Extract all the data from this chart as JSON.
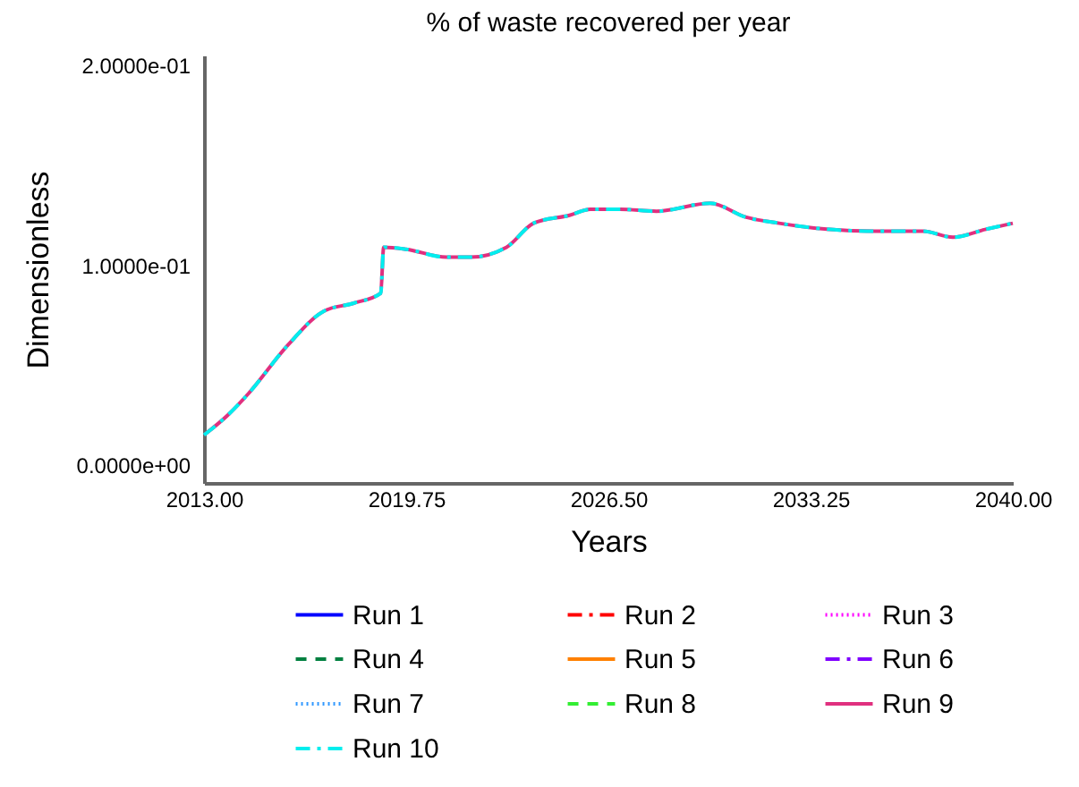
{
  "chart_data": {
    "type": "line",
    "title": "% of waste recovered per year",
    "xlabel": "Years",
    "ylabel": "Dimensionless",
    "x": [
      2013,
      2013.8,
      2014.5,
      2015.8,
      2017.0,
      2018.0,
      2018.9,
      2019.0,
      2019.75,
      2021.1,
      2021.9,
      2023.1,
      2024.0,
      2025.2,
      2025.9,
      2026.9,
      2028.1,
      2029.9,
      2031.1,
      2032.2,
      2033.8,
      2035.4,
      2037.0,
      2038.0,
      2039.1,
      2040
    ],
    "xlim": [
      2013,
      2040
    ],
    "xticks": [
      {
        "value": 2013,
        "label": "2013.00"
      },
      {
        "value": 2019.75,
        "label": "2019.75"
      },
      {
        "value": 2026.5,
        "label": "2026.50"
      },
      {
        "value": 2033.25,
        "label": "2033.25"
      },
      {
        "value": 2040,
        "label": "2040.00"
      }
    ],
    "ylim": [
      -0.009,
      0.205
    ],
    "yticks": [
      {
        "value": 0,
        "label": "0.0000e+00"
      },
      {
        "value": 0.1,
        "label": "1.0000e-01"
      },
      {
        "value": 0.2,
        "label": "2.0000e-01"
      }
    ],
    "grid": false,
    "legend": "bottom",
    "series": [
      {
        "name": "Run 1",
        "color": "#0000ff",
        "line_style": "solid",
        "values": [
          null,
          null,
          null,
          null,
          null,
          null,
          null,
          null,
          null,
          null,
          null,
          null,
          null,
          null,
          null,
          null,
          null,
          null,
          null,
          null,
          null,
          null,
          null,
          null,
          null,
          null
        ]
      },
      {
        "name": "Run 2",
        "color": "#ff0000",
        "line_style": "dashdot",
        "values": [
          null,
          null,
          null,
          null,
          null,
          null,
          null,
          null,
          null,
          null,
          null,
          null,
          null,
          null,
          null,
          null,
          null,
          null,
          null,
          null,
          null,
          null,
          null,
          null,
          null,
          null
        ]
      },
      {
        "name": "Run 3",
        "color": "#ff00ff",
        "line_style": "dotted",
        "values": [
          null,
          null,
          null,
          null,
          null,
          null,
          null,
          null,
          null,
          null,
          null,
          null,
          null,
          null,
          null,
          null,
          null,
          null,
          null,
          null,
          null,
          null,
          null,
          null,
          null,
          null
        ]
      },
      {
        "name": "Run 4",
        "color": "#008040",
        "line_style": "dashed",
        "values": [
          null,
          null,
          null,
          null,
          null,
          null,
          null,
          null,
          null,
          null,
          null,
          null,
          null,
          null,
          null,
          null,
          null,
          null,
          null,
          null,
          null,
          null,
          null,
          null,
          null,
          null
        ]
      },
      {
        "name": "Run 5",
        "color": "#ff8000",
        "line_style": "solid",
        "values": [
          null,
          null,
          null,
          null,
          null,
          null,
          null,
          null,
          null,
          null,
          null,
          null,
          null,
          null,
          null,
          null,
          null,
          null,
          null,
          null,
          null,
          null,
          null,
          null,
          null,
          null
        ]
      },
      {
        "name": "Run 6",
        "color": "#8000ff",
        "line_style": "dashdot",
        "values": [
          null,
          null,
          null,
          null,
          null,
          null,
          null,
          null,
          null,
          null,
          null,
          null,
          null,
          null,
          null,
          null,
          null,
          null,
          null,
          null,
          null,
          null,
          null,
          null,
          null,
          null
        ]
      },
      {
        "name": "Run 7",
        "color": "#3399ff",
        "line_style": "dotted",
        "values": [
          null,
          null,
          null,
          null,
          null,
          null,
          null,
          null,
          null,
          null,
          null,
          null,
          null,
          null,
          null,
          null,
          null,
          null,
          null,
          null,
          null,
          null,
          null,
          null,
          null,
          null
        ]
      },
      {
        "name": "Run 8",
        "color": "#33ee33",
        "line_style": "dashed",
        "values": [
          null,
          null,
          null,
          null,
          null,
          null,
          null,
          null,
          null,
          null,
          null,
          null,
          null,
          null,
          null,
          null,
          null,
          null,
          null,
          null,
          null,
          null,
          null,
          null,
          null,
          null
        ]
      },
      {
        "name": "Run 9",
        "color": "#e0307f",
        "line_style": "solid",
        "values": [
          0.015,
          0.025,
          0.036,
          0.06,
          0.077,
          0.081,
          0.086,
          0.109,
          0.108,
          0.104,
          0.104,
          0.109,
          0.121,
          0.125,
          0.128,
          0.128,
          0.127,
          0.131,
          0.124,
          0.121,
          0.118,
          0.117,
          0.117,
          0.114,
          0.118,
          0.121
        ]
      },
      {
        "name": "Run 10",
        "color": "#00eeee",
        "line_style": "dashdot",
        "values": [
          0.015,
          0.025,
          0.036,
          0.06,
          0.077,
          0.081,
          0.086,
          0.109,
          0.108,
          0.104,
          0.104,
          0.109,
          0.121,
          0.125,
          0.128,
          0.128,
          0.127,
          0.131,
          0.124,
          0.121,
          0.118,
          0.117,
          0.117,
          0.114,
          0.118,
          0.121
        ]
      }
    ]
  }
}
